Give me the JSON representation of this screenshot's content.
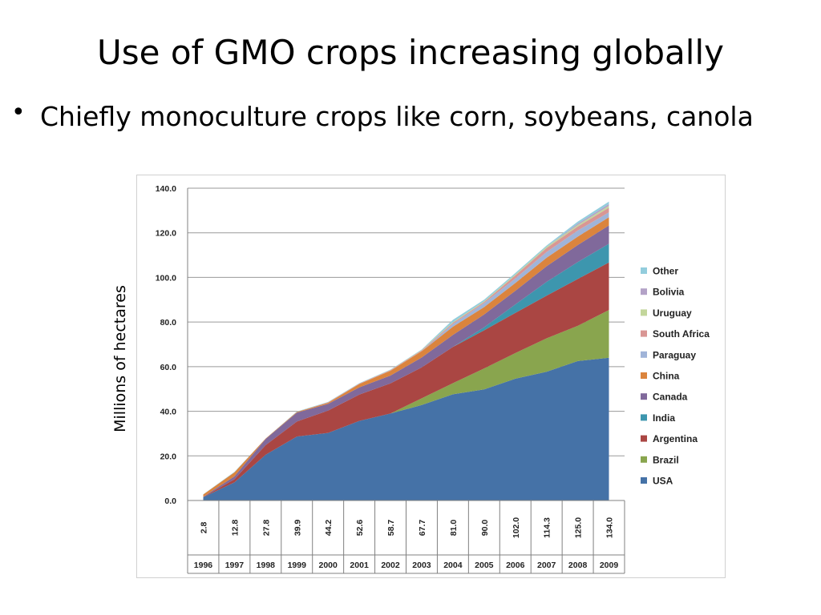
{
  "slide": {
    "title": "Use of GMO crops increasing globally",
    "bullet_marker": "•",
    "bullet": "Chiefly monoculture crops like corn, soybeans, canola"
  },
  "chart_data": {
    "type": "area",
    "stacked": true,
    "title": "",
    "ylabel": "Millions of hectares",
    "xlabel": "",
    "ylim": [
      0,
      140
    ],
    "yticks": [
      "0.0",
      "20.0",
      "40.0",
      "60.0",
      "80.0",
      "100.0",
      "120.0",
      "140.0"
    ],
    "grid": "horizontal",
    "legend_position": "right",
    "categories": [
      "1996",
      "1997",
      "1998",
      "1999",
      "2000",
      "2001",
      "2002",
      "2003",
      "2004",
      "2005",
      "2006",
      "2007",
      "2008",
      "2009"
    ],
    "totals_label": [
      "2.8",
      "12.8",
      "27.8",
      "39.9",
      "44.2",
      "52.6",
      "58.7",
      "67.7",
      "81.0",
      "90.0",
      "102.0",
      "114.3",
      "125.0",
      "134.0"
    ],
    "series": [
      {
        "name": "USA",
        "color": "#4572A7",
        "values": [
          1.5,
          8.1,
          20.5,
          28.7,
          30.3,
          35.7,
          39.0,
          42.8,
          47.6,
          49.8,
          54.6,
          57.7,
          62.5,
          64.0
        ]
      },
      {
        "name": "Brazil",
        "color": "#89A54E",
        "values": [
          0,
          0,
          0,
          0,
          0,
          0,
          0,
          3.0,
          5.0,
          9.4,
          11.5,
          15.0,
          15.8,
          21.4
        ]
      },
      {
        "name": "Argentina",
        "color": "#AA4643",
        "values": [
          0.1,
          1.4,
          4.3,
          6.7,
          10.0,
          11.8,
          13.5,
          13.9,
          16.2,
          17.1,
          18.0,
          19.1,
          21.0,
          21.3
        ]
      },
      {
        "name": "India",
        "color": "#3D96AE",
        "values": [
          0,
          0,
          0,
          0,
          0,
          0,
          0,
          0,
          0,
          1.3,
          3.8,
          6.2,
          7.6,
          8.4
        ]
      },
      {
        "name": "Canada",
        "color": "#80699B",
        "values": [
          0.1,
          1.3,
          2.8,
          4.0,
          3.0,
          3.2,
          3.5,
          4.4,
          5.4,
          5.8,
          6.1,
          7.0,
          7.6,
          8.2
        ]
      },
      {
        "name": "China",
        "color": "#DB843D",
        "values": [
          1.0,
          1.8,
          0.2,
          0.3,
          0.5,
          1.5,
          2.1,
          2.8,
          3.7,
          3.3,
          3.5,
          3.8,
          3.8,
          3.7
        ]
      },
      {
        "name": "Paraguay",
        "color": "#A0B4D8",
        "values": [
          0,
          0,
          0,
          0,
          0,
          0,
          0,
          0,
          1.2,
          1.8,
          2.0,
          2.6,
          2.7,
          2.2
        ]
      },
      {
        "name": "South Africa",
        "color": "#D99694",
        "values": [
          0,
          0,
          0,
          0,
          0.2,
          0.2,
          0.3,
          0.4,
          0.5,
          0.5,
          1.4,
          1.8,
          1.8,
          2.1
        ]
      },
      {
        "name": "Uruguay",
        "color": "#C3D69B",
        "values": [
          0,
          0,
          0,
          0,
          0,
          0,
          0.1,
          0.2,
          0.3,
          0.3,
          0.4,
          0.5,
          0.7,
          0.8
        ]
      },
      {
        "name": "Bolivia",
        "color": "#B3A2C7",
        "values": [
          0,
          0,
          0,
          0,
          0,
          0,
          0,
          0,
          0,
          0,
          0,
          0,
          0.6,
          0.8
        ]
      },
      {
        "name": "Other",
        "color": "#93CDDD",
        "values": [
          0.1,
          0.2,
          0,
          0.2,
          0.2,
          0.2,
          0.2,
          0.2,
          1.1,
          0.7,
          0.7,
          0.6,
          0.9,
          1.1
        ]
      }
    ]
  }
}
